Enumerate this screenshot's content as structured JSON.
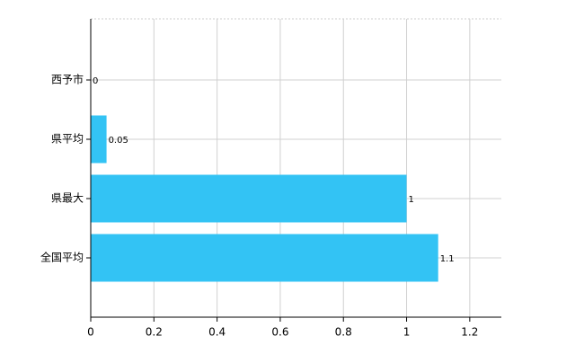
{
  "chart_data": {
    "type": "bar",
    "orientation": "horizontal",
    "categories": [
      "西予市",
      "県平均",
      "県最大",
      "全国平均"
    ],
    "values": [
      0,
      0.05,
      1,
      1.1
    ],
    "color": "#33c3f4",
    "xlim": [
      0,
      1.3
    ],
    "xticks": [
      0,
      0.2,
      0.4,
      0.6,
      0.8,
      1,
      1.2
    ],
    "grid": true
  }
}
